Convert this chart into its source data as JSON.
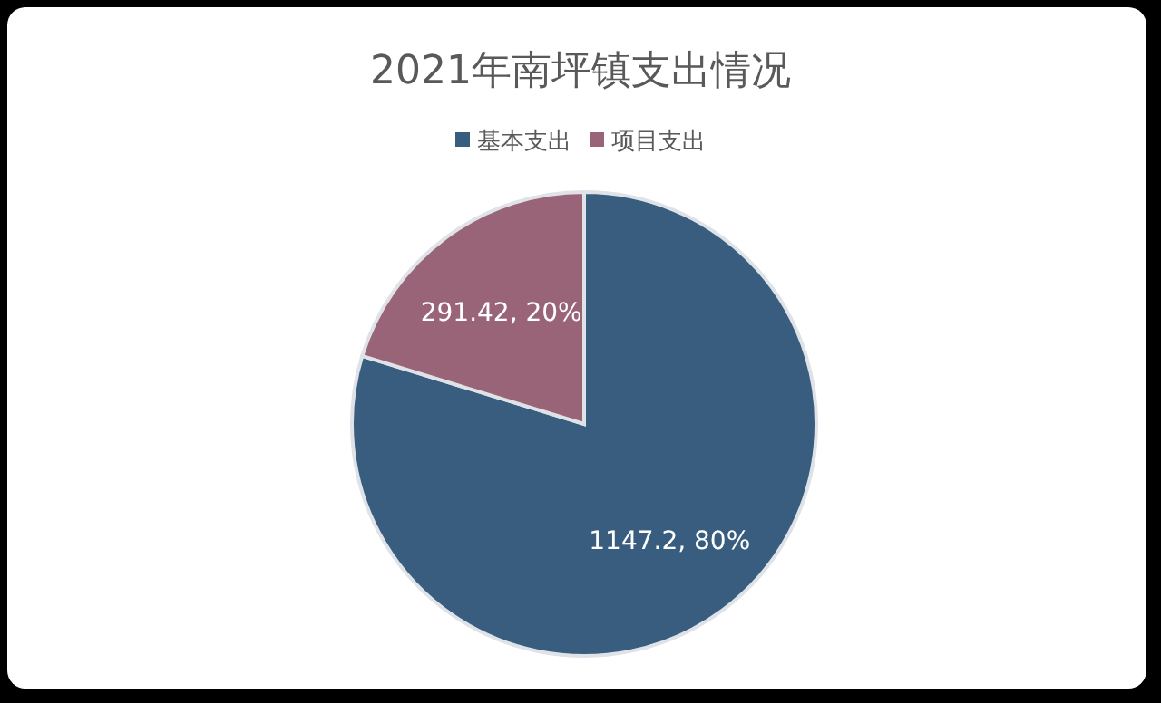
{
  "chart_data": {
    "type": "pie",
    "title": "2021年南坪镇支出情况",
    "categories": [
      "基本支出",
      "项目支出"
    ],
    "values": [
      1147.2,
      291.42
    ],
    "colors": [
      "#385d7e",
      "#9a6478"
    ],
    "value_labels": [
      "1147.2, 80%",
      "291.42, 20%"
    ],
    "legend": "top"
  }
}
